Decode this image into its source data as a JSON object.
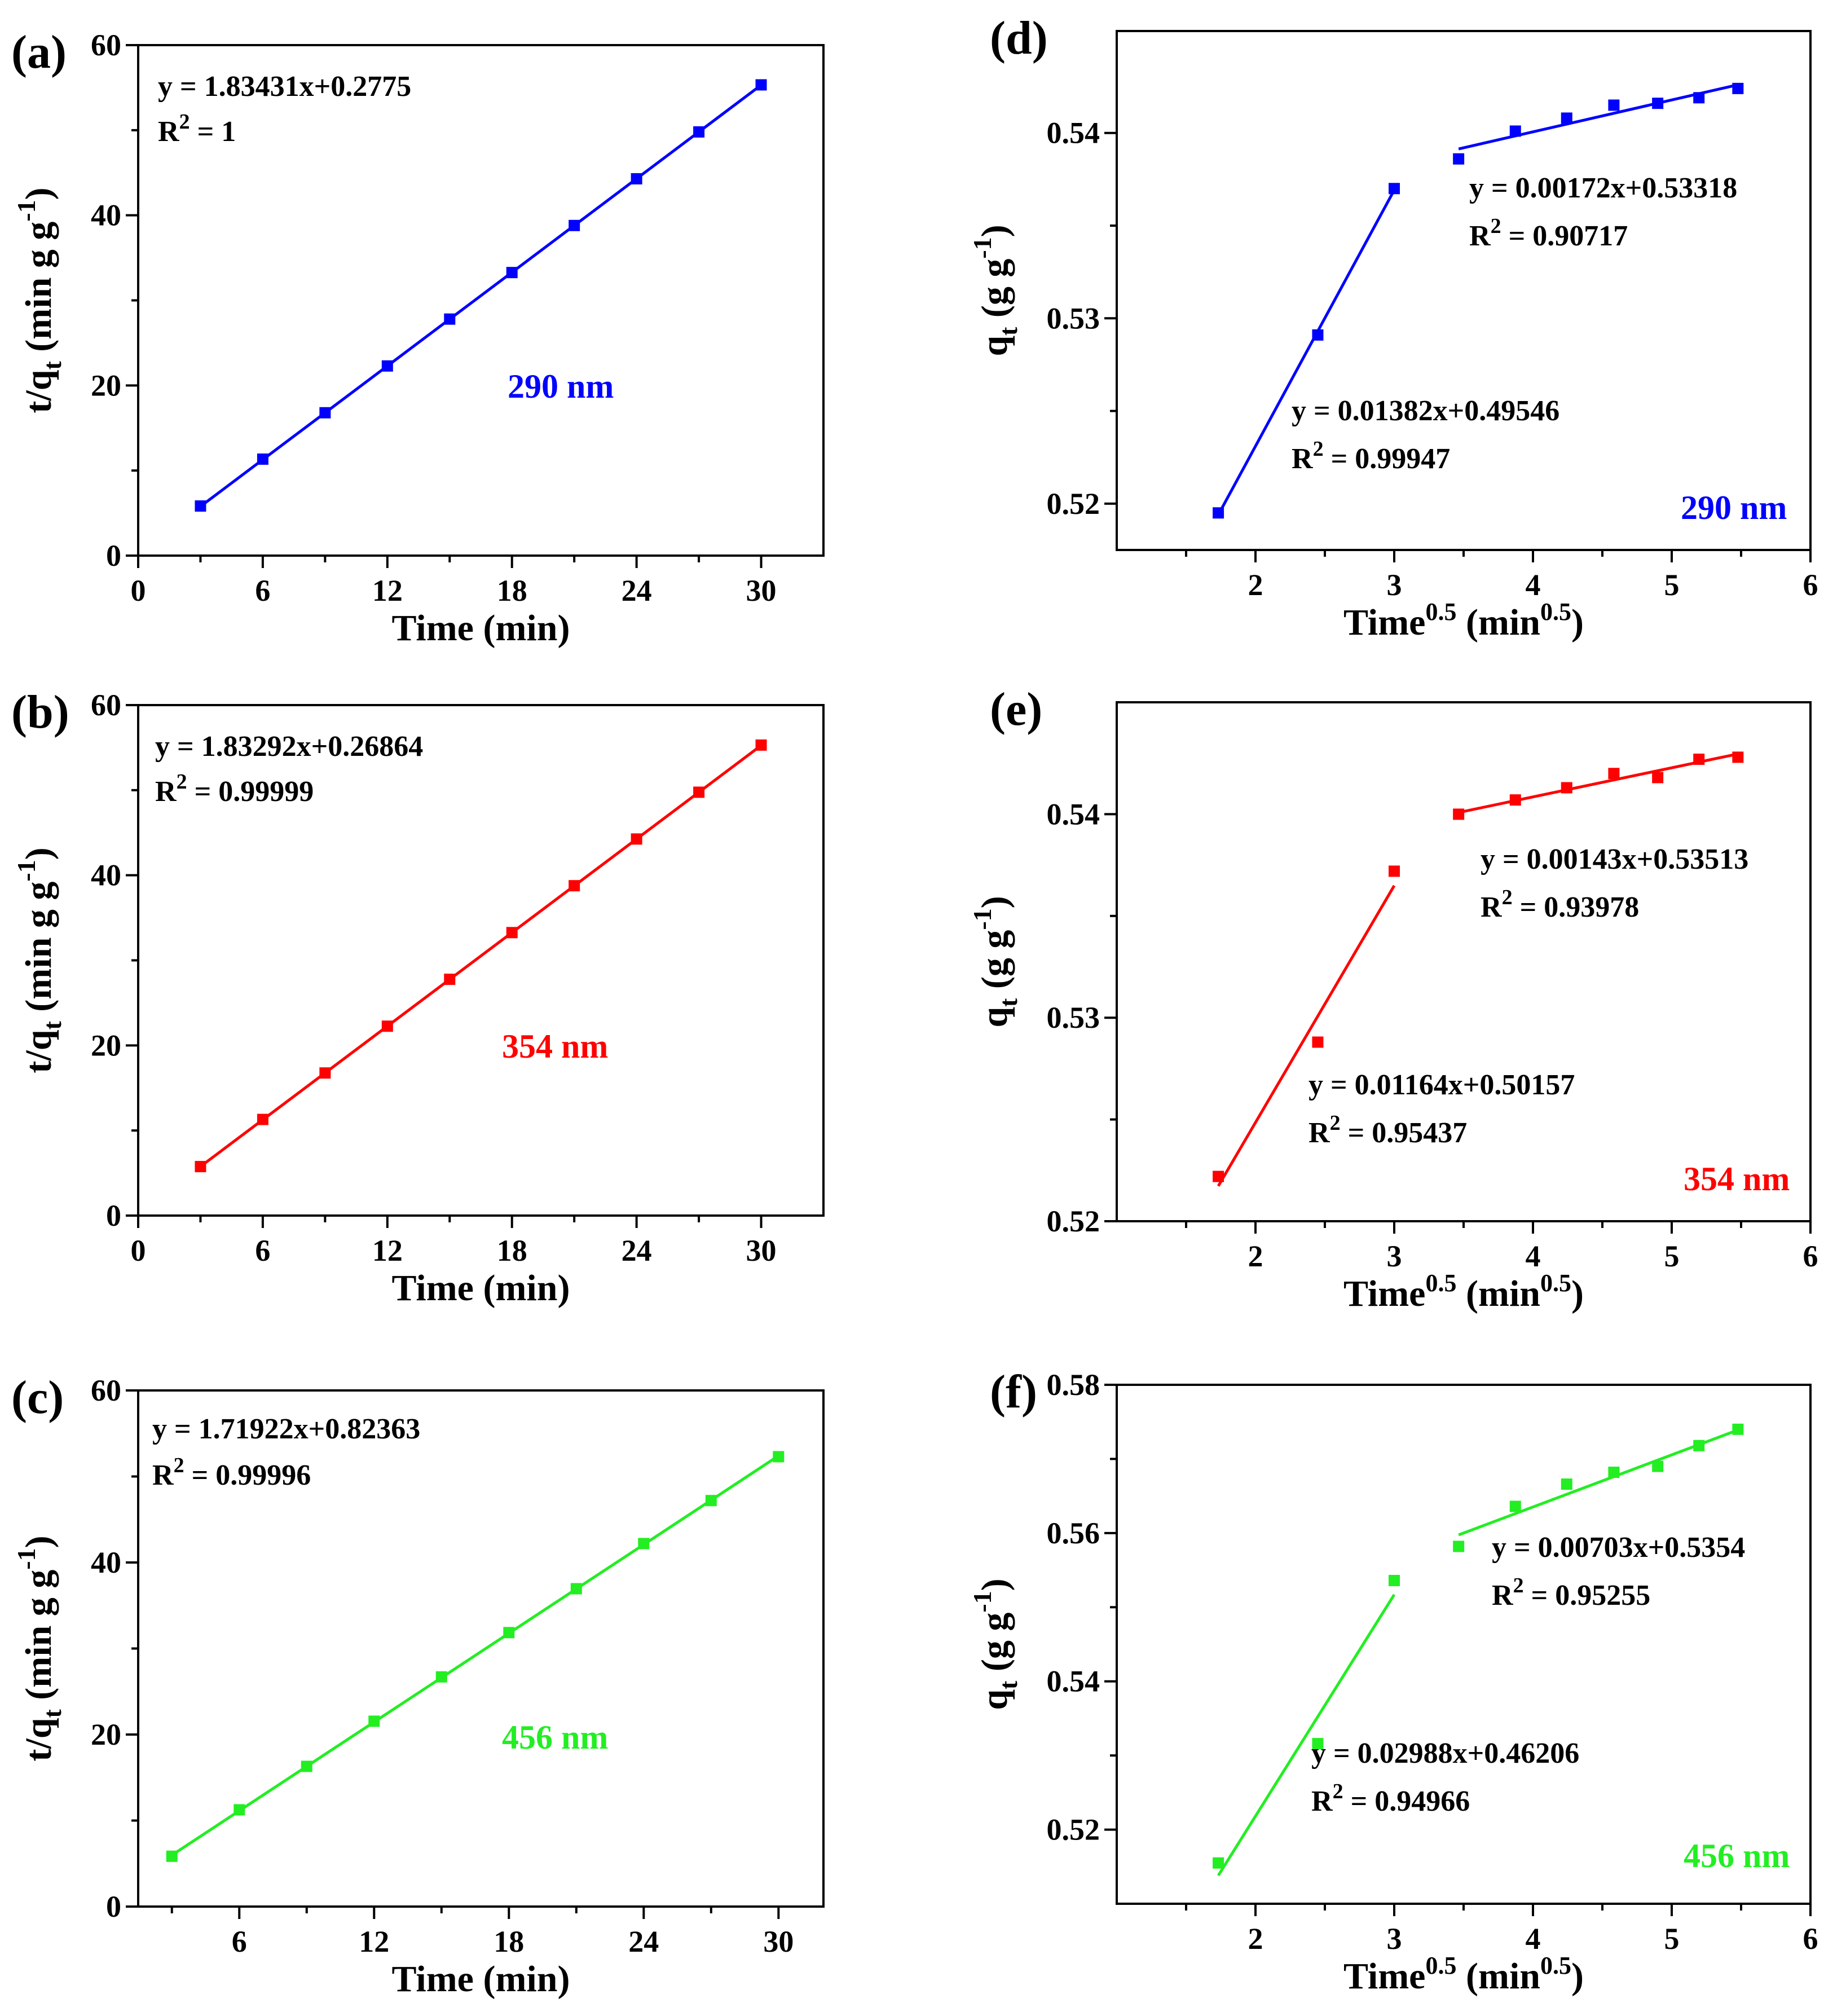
{
  "figure": {
    "panels": [
      {
        "id": "a",
        "label": "(a)",
        "kind": "pso",
        "color": "#0000ff",
        "wavelength_label": "290 nm",
        "equation_label": "y = 1.83431x+0.2775",
        "r2_prefix": "R",
        "r2_exp": "2",
        "r2_value": " = 1",
        "xlabel": "Time (min)",
        "ylabel_main": "t/q",
        "ylabel_sub": "t",
        "ylabel_unit": " (min g g",
        "ylabel_unit_exp": "-1",
        "ylabel_close": ")",
        "xlim": [
          0,
          33
        ],
        "ylim": [
          0,
          60
        ],
        "xticks": [
          0,
          6,
          12,
          18,
          24,
          30
        ],
        "yticks": [
          0,
          20,
          40,
          60
        ],
        "xtick_labels": [
          "0",
          "6",
          "12",
          "18",
          "24",
          "30"
        ],
        "ytick_labels": [
          "0",
          "20",
          "40",
          "60"
        ],
        "x": [
          3,
          6,
          9,
          12,
          15,
          18,
          21,
          24,
          27,
          30
        ],
        "y": [
          5.83,
          11.34,
          16.79,
          22.29,
          27.8,
          33.27,
          38.8,
          44.29,
          49.8,
          55.33
        ],
        "fits": [
          {
            "slope": 1.83431,
            "intercept": 0.2775,
            "x_range": [
              3,
              30
            ]
          }
        ]
      },
      {
        "id": "b",
        "label": "(b)",
        "kind": "pso",
        "color": "#ff0000",
        "wavelength_label": "354 nm",
        "equation_label": "y = 1.83292x+0.26864",
        "r2_prefix": "R",
        "r2_exp": "2",
        "r2_value": " = 0.99999",
        "xlabel": "Time (min)",
        "ylabel_main": "t/q",
        "ylabel_sub": "t",
        "ylabel_unit": " (min g g",
        "ylabel_unit_exp": "-1",
        "ylabel_close": ")",
        "xlim": [
          0,
          33
        ],
        "ylim": [
          0,
          60
        ],
        "xticks": [
          0,
          6,
          12,
          18,
          24,
          30
        ],
        "yticks": [
          0,
          20,
          40,
          60
        ],
        "xtick_labels": [
          "0",
          "6",
          "12",
          "18",
          "24",
          "30"
        ],
        "ytick_labels": [
          "0",
          "20",
          "40",
          "60"
        ],
        "x": [
          3,
          6,
          9,
          12,
          15,
          18,
          21,
          24,
          27,
          30
        ],
        "y": [
          5.76,
          11.3,
          16.76,
          22.26,
          27.77,
          33.26,
          38.77,
          44.26,
          49.76,
          55.3
        ],
        "fits": [
          {
            "slope": 1.83292,
            "intercept": 0.26864,
            "x_range": [
              3,
              30
            ]
          }
        ]
      },
      {
        "id": "c",
        "label": "(c)",
        "kind": "pso",
        "color": "#22ee22",
        "wavelength_label": "456 nm",
        "equation_label": "y = 1.71922x+0.82363",
        "r2_prefix": "R",
        "r2_exp": "2",
        "r2_value": " = 0.99996",
        "xlabel": "Time (min)",
        "ylabel_main": "t/q",
        "ylabel_sub": "t",
        "ylabel_unit": " (min g g",
        "ylabel_unit_exp": "-1",
        "ylabel_close": ")",
        "xlim": [
          1.5,
          32
        ],
        "ylim": [
          0,
          60
        ],
        "xticks": [
          6,
          12,
          18,
          24,
          30
        ],
        "yticks": [
          0,
          20,
          40,
          60
        ],
        "xtick_labels": [
          "6",
          "12",
          "18",
          "24",
          "30"
        ],
        "ytick_labels": [
          "0",
          "20",
          "40",
          "60"
        ],
        "x": [
          3,
          6,
          9,
          12,
          15,
          18,
          21,
          24,
          27,
          30
        ],
        "y": [
          5.85,
          11.25,
          16.3,
          21.55,
          26.7,
          31.85,
          36.95,
          42.2,
          47.2,
          52.3
        ],
        "fits": [
          {
            "slope": 1.71922,
            "intercept": 0.82363,
            "x_range": [
              3,
              30
            ]
          }
        ]
      },
      {
        "id": "d",
        "label": "(d)",
        "kind": "ipd",
        "color": "#0000ff",
        "wavelength_label": "290 nm",
        "xlabel_main": "Time",
        "xlabel_exp": "0.5",
        "xlabel_unit": " (min",
        "xlabel_unit_exp": "0.5",
        "xlabel_close": ")",
        "ylabel_main": "q",
        "ylabel_sub": "t",
        "ylabel_unit": " (g g",
        "ylabel_unit_exp": "-1",
        "ylabel_close": ")",
        "xlim": [
          1.0,
          6.0
        ],
        "ylim": [
          0.5175,
          0.5455
        ],
        "xticks": [
          2,
          3,
          4,
          5,
          6
        ],
        "yticks": [
          0.52,
          0.53,
          0.54
        ],
        "xtick_labels": [
          "2",
          "3",
          "4",
          "5",
          "6"
        ],
        "ytick_labels": [
          "0.52",
          "0.53",
          "0.54"
        ],
        "x": [
          1.732,
          2.449,
          3.0,
          3.464,
          3.873,
          4.243,
          4.583,
          4.899,
          5.196,
          5.477
        ],
        "y": [
          0.5195,
          0.5291,
          0.537,
          0.5386,
          0.5401,
          0.5408,
          0.5415,
          0.5416,
          0.5419,
          0.5424
        ],
        "fits": [
          {
            "slope": 0.01382,
            "intercept": 0.49546,
            "x_range": [
              1.732,
              3.0
            ],
            "equation_label": "y = 0.01382x+0.49546",
            "r2_prefix": "R",
            "r2_exp": "2",
            "r2_value": " = 0.99947"
          },
          {
            "slope": 0.00172,
            "intercept": 0.53318,
            "x_range": [
              3.464,
              5.477
            ],
            "equation_label": "y = 0.00172x+0.53318",
            "r2_prefix": "R",
            "r2_exp": "2",
            "r2_value": " = 0.90717"
          }
        ]
      },
      {
        "id": "e",
        "label": "(e)",
        "kind": "ipd",
        "color": "#ff0000",
        "wavelength_label": "354 nm",
        "xlabel_main": "Time",
        "xlabel_exp": "0.5",
        "xlabel_unit": " (min",
        "xlabel_unit_exp": "0.5",
        "xlabel_close": ")",
        "ylabel_main": "q",
        "ylabel_sub": "t",
        "ylabel_unit": " (g g",
        "ylabel_unit_exp": "-1",
        "ylabel_close": ")",
        "xlim": [
          1.0,
          6.0
        ],
        "ylim": [
          0.52,
          0.5455
        ],
        "xticks": [
          2,
          3,
          4,
          5,
          6
        ],
        "yticks": [
          0.52,
          0.53,
          0.54
        ],
        "xtick_labels": [
          "2",
          "3",
          "4",
          "5",
          "6"
        ],
        "ytick_labels": [
          "0.52",
          "0.53",
          "0.54"
        ],
        "x": [
          1.732,
          2.449,
          3.0,
          3.464,
          3.873,
          4.243,
          4.583,
          4.899,
          5.196,
          5.477
        ],
        "y": [
          0.5222,
          0.5288,
          0.5372,
          0.54,
          0.5407,
          0.5413,
          0.542,
          0.5418,
          0.5427,
          0.5428
        ],
        "fits": [
          {
            "slope": 0.01164,
            "intercept": 0.50157,
            "x_range": [
              1.732,
              3.0
            ],
            "equation_label": "y = 0.01164x+0.50157",
            "r2_prefix": "R",
            "r2_exp": "2",
            "r2_value": " = 0.95437"
          },
          {
            "slope": 0.00143,
            "intercept": 0.53513,
            "x_range": [
              3.464,
              5.477
            ],
            "equation_label": "y = 0.00143x+0.53513",
            "r2_prefix": "R",
            "r2_exp": "2",
            "r2_value": " = 0.93978"
          }
        ]
      },
      {
        "id": "f",
        "label": "(f)",
        "kind": "ipd",
        "color": "#22ee22",
        "wavelength_label": "456 nm",
        "xlabel_main": "Time",
        "xlabel_exp": "0.5",
        "xlabel_unit": " (min",
        "xlabel_unit_exp": "0.5",
        "xlabel_close": ")",
        "ylabel_main": "q",
        "ylabel_sub": "t",
        "ylabel_unit": " (g g",
        "ylabel_unit_exp": "-1",
        "ylabel_close": ")",
        "xlim": [
          1.0,
          6.0
        ],
        "ylim": [
          0.51,
          0.58
        ],
        "xticks": [
          2,
          3,
          4,
          5,
          6
        ],
        "yticks": [
          0.52,
          0.54,
          0.56,
          0.58
        ],
        "xtick_labels": [
          "2",
          "3",
          "4",
          "5",
          "6"
        ],
        "ytick_labels": [
          "0.52",
          "0.54",
          "0.56",
          "0.58"
        ],
        "x": [
          1.732,
          2.449,
          3.0,
          3.464,
          3.873,
          4.243,
          4.583,
          4.899,
          5.196,
          5.477
        ],
        "y": [
          0.5155,
          0.5316,
          0.5536,
          0.5582,
          0.5636,
          0.5666,
          0.5682,
          0.569,
          0.5718,
          0.574
        ],
        "fits": [
          {
            "slope": 0.02988,
            "intercept": 0.46206,
            "x_range": [
              1.732,
              3.0
            ],
            "equation_label": "y = 0.02988x+0.46206",
            "r2_prefix": "R",
            "r2_exp": "2",
            "r2_value": " = 0.94966"
          },
          {
            "slope": 0.00703,
            "intercept": 0.5354,
            "x_range": [
              3.464,
              5.477
            ],
            "equation_label": "y = 0.00703x+0.5354",
            "r2_prefix": "R",
            "r2_exp": "2",
            "r2_value": " = 0.95255"
          }
        ]
      }
    ]
  },
  "chart_data": [
    {
      "type": "scatter",
      "panel": "(a)",
      "title": "",
      "xlabel": "Time (min)",
      "ylabel": "t/qt (min g g-1)",
      "xlim": [
        0,
        33
      ],
      "ylim": [
        0,
        60
      ],
      "series": [
        {
          "name": "290 nm",
          "x": [
            3,
            6,
            9,
            12,
            15,
            18,
            21,
            24,
            27,
            30
          ],
          "y": [
            5.83,
            11.34,
            16.79,
            22.29,
            27.8,
            33.27,
            38.8,
            44.29,
            49.8,
            55.33
          ]
        }
      ],
      "fit": "y = 1.83431x+0.2775, R2 = 1"
    },
    {
      "type": "scatter",
      "panel": "(b)",
      "title": "",
      "xlabel": "Time (min)",
      "ylabel": "t/qt (min g g-1)",
      "xlim": [
        0,
        33
      ],
      "ylim": [
        0,
        60
      ],
      "series": [
        {
          "name": "354 nm",
          "x": [
            3,
            6,
            9,
            12,
            15,
            18,
            21,
            24,
            27,
            30
          ],
          "y": [
            5.76,
            11.3,
            16.76,
            22.26,
            27.77,
            33.26,
            38.77,
            44.26,
            49.76,
            55.3
          ]
        }
      ],
      "fit": "y = 1.83292x+0.26864, R2 = 0.99999"
    },
    {
      "type": "scatter",
      "panel": "(c)",
      "title": "",
      "xlabel": "Time (min)",
      "ylabel": "t/qt (min g g-1)",
      "xlim": [
        1.5,
        32
      ],
      "ylim": [
        0,
        60
      ],
      "series": [
        {
          "name": "456 nm",
          "x": [
            3,
            6,
            9,
            12,
            15,
            18,
            21,
            24,
            27,
            30
          ],
          "y": [
            5.85,
            11.25,
            16.3,
            21.55,
            26.7,
            31.85,
            36.95,
            42.2,
            47.2,
            52.3
          ]
        }
      ],
      "fit": "y = 1.71922x+0.82363, R2 = 0.99996"
    },
    {
      "type": "scatter",
      "panel": "(d)",
      "title": "",
      "xlabel": "Time0.5 (min0.5)",
      "ylabel": "qt (g g-1)",
      "xlim": [
        1.0,
        6.0
      ],
      "ylim": [
        0.5175,
        0.5455
      ],
      "series": [
        {
          "name": "290 nm",
          "x": [
            1.732,
            2.449,
            3.0,
            3.464,
            3.873,
            4.243,
            4.583,
            4.899,
            5.196,
            5.477
          ],
          "y": [
            0.5195,
            0.5291,
            0.537,
            0.5386,
            0.5401,
            0.5408,
            0.5415,
            0.5416,
            0.5419,
            0.5424
          ]
        }
      ],
      "fit": "y = 0.01382x+0.49546, R2 = 0.99947; y = 0.00172x+0.53318, R2 = 0.90717"
    },
    {
      "type": "scatter",
      "panel": "(e)",
      "title": "",
      "xlabel": "Time0.5 (min0.5)",
      "ylabel": "qt (g g-1)",
      "xlim": [
        1.0,
        6.0
      ],
      "ylim": [
        0.52,
        0.5455
      ],
      "series": [
        {
          "name": "354 nm",
          "x": [
            1.732,
            2.449,
            3.0,
            3.464,
            3.873,
            4.243,
            4.583,
            4.899,
            5.196,
            5.477
          ],
          "y": [
            0.5222,
            0.5288,
            0.5372,
            0.54,
            0.5407,
            0.5413,
            0.542,
            0.5418,
            0.5427,
            0.5428
          ]
        }
      ],
      "fit": "y = 0.01164x+0.50157, R2 = 0.95437; y = 0.00143x+0.53513, R2 = 0.93978"
    },
    {
      "type": "scatter",
      "panel": "(f)",
      "title": "",
      "xlabel": "Time0.5 (min0.5)",
      "ylabel": "qt (g g-1)",
      "xlim": [
        1.0,
        6.0
      ],
      "ylim": [
        0.51,
        0.58
      ],
      "series": [
        {
          "name": "456 nm",
          "x": [
            1.732,
            2.449,
            3.0,
            3.464,
            3.873,
            4.243,
            4.583,
            4.899,
            5.196,
            5.477
          ],
          "y": [
            0.5155,
            0.5316,
            0.5536,
            0.5582,
            0.5636,
            0.5666,
            0.5682,
            0.569,
            0.5718,
            0.574
          ]
        }
      ],
      "fit": "y = 0.02988x+0.46206, R2 = 0.94966; y = 0.00703x+0.5354, R2 = 0.95255"
    }
  ]
}
